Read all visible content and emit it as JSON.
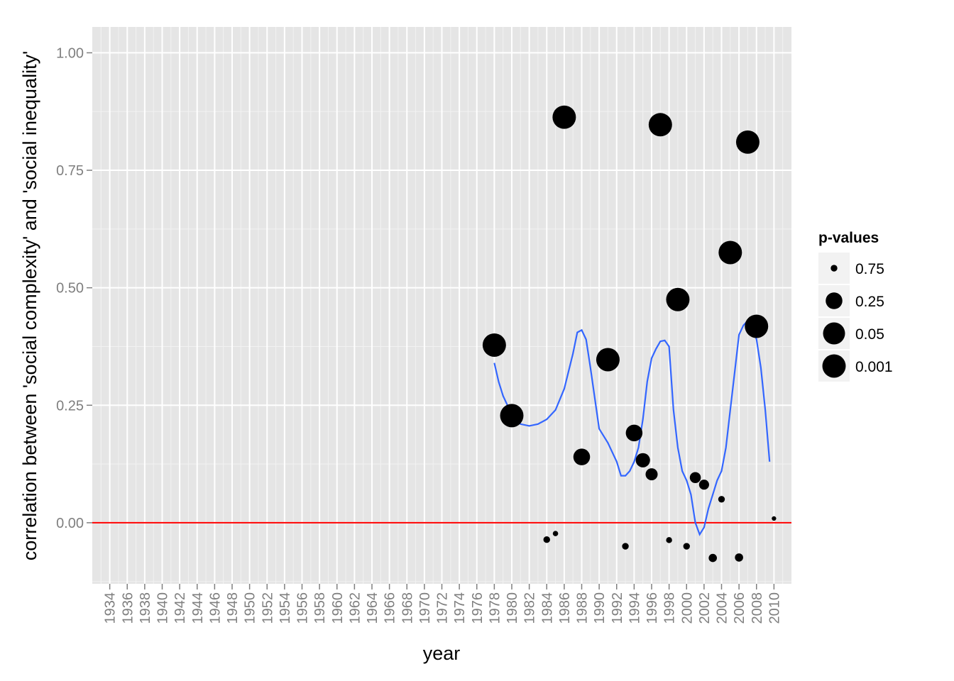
{
  "chart_data": {
    "type": "scatter",
    "xlabel": "year",
    "ylabel": "correlation between 'social complexity' and 'social inequality'",
    "xlim": [
      1932,
      2012
    ],
    "ylim": [
      -0.13,
      1.055
    ],
    "x_ticks": [
      1934,
      1936,
      1938,
      1940,
      1942,
      1944,
      1946,
      1948,
      1950,
      1952,
      1954,
      1956,
      1958,
      1960,
      1962,
      1964,
      1966,
      1968,
      1970,
      1972,
      1974,
      1976,
      1978,
      1980,
      1982,
      1984,
      1986,
      1988,
      1990,
      1992,
      1994,
      1996,
      1998,
      2000,
      2002,
      2004,
      2006,
      2008,
      2010
    ],
    "x_tick_labels": [
      "1934",
      "1936",
      "1938",
      "1940",
      "1942",
      "1944",
      "1946",
      "1948",
      "1950",
      "1952",
      "1954",
      "1956",
      "1958",
      "1960",
      "1962",
      "1964",
      "1966",
      "1968",
      "1970",
      "1972",
      "1974",
      "1976",
      "1978",
      "1980",
      "1982",
      "1984",
      "1986",
      "1988",
      "1990",
      "1992",
      "1994",
      "1996",
      "1998",
      "2000",
      "2002",
      "2004",
      "2006",
      "2008",
      "2010"
    ],
    "y_ticks": [
      0,
      0.25,
      0.5,
      0.75,
      1.0
    ],
    "y_tick_labels": [
      "0.00",
      "0.25",
      "0.50",
      "0.75",
      "1.00"
    ],
    "grid": true,
    "background_color": "#e5e5e5",
    "grid_color": "#ffffff",
    "point_color": "#000000",
    "smooth_color": "#3366ff",
    "reference_line": {
      "y": 0,
      "color": "#ff0000"
    },
    "points": [
      {
        "x": 1978,
        "y": 0.378,
        "p": 0.001
      },
      {
        "x": 1980,
        "y": 0.228,
        "p": 0.001
      },
      {
        "x": 1984,
        "y": -0.036,
        "p": 0.75
      },
      {
        "x": 1985,
        "y": -0.023,
        "p": 0.85
      },
      {
        "x": 1986,
        "y": 0.863,
        "p": 0.001
      },
      {
        "x": 1988,
        "y": 0.14,
        "p": 0.25
      },
      {
        "x": 1991,
        "y": 0.347,
        "p": 0.001
      },
      {
        "x": 1993,
        "y": -0.05,
        "p": 0.75
      },
      {
        "x": 1994,
        "y": 0.191,
        "p": 0.25
      },
      {
        "x": 1995,
        "y": 0.133,
        "p": 0.35
      },
      {
        "x": 1996,
        "y": 0.103,
        "p": 0.45
      },
      {
        "x": 1997,
        "y": 0.847,
        "p": 0.001
      },
      {
        "x": 1998,
        "y": -0.037,
        "p": 0.8
      },
      {
        "x": 1999,
        "y": 0.475,
        "p": 0.001
      },
      {
        "x": 2000,
        "y": -0.05,
        "p": 0.75
      },
      {
        "x": 2001,
        "y": 0.096,
        "p": 0.5
      },
      {
        "x": 2002,
        "y": 0.081,
        "p": 0.55
      },
      {
        "x": 2003,
        "y": -0.075,
        "p": 0.65
      },
      {
        "x": 2004,
        "y": 0.05,
        "p": 0.75
      },
      {
        "x": 2005,
        "y": 0.575,
        "p": 0.001
      },
      {
        "x": 2006,
        "y": -0.074,
        "p": 0.65
      },
      {
        "x": 2007,
        "y": 0.81,
        "p": 0.001
      },
      {
        "x": 2008,
        "y": 0.418,
        "p": 0.001
      },
      {
        "x": 2010,
        "y": 0.009,
        "p": 0.95
      }
    ],
    "smooth_line": [
      [
        1978,
        0.34
      ],
      [
        1978.5,
        0.3
      ],
      [
        1979,
        0.27
      ],
      [
        1980,
        0.23
      ],
      [
        1981,
        0.21
      ],
      [
        1982,
        0.206
      ],
      [
        1983,
        0.21
      ],
      [
        1984,
        0.22
      ],
      [
        1985,
        0.24
      ],
      [
        1986,
        0.285
      ],
      [
        1987,
        0.36
      ],
      [
        1987.5,
        0.405
      ],
      [
        1988,
        0.41
      ],
      [
        1988.5,
        0.39
      ],
      [
        1989,
        0.33
      ],
      [
        1990,
        0.2
      ],
      [
        1991,
        0.17
      ],
      [
        1992,
        0.13
      ],
      [
        1992.5,
        0.1
      ],
      [
        1993,
        0.1
      ],
      [
        1993.5,
        0.11
      ],
      [
        1994,
        0.13
      ],
      [
        1994.5,
        0.16
      ],
      [
        1995,
        0.22
      ],
      [
        1995.5,
        0.3
      ],
      [
        1996,
        0.35
      ],
      [
        1996.5,
        0.37
      ],
      [
        1997,
        0.386
      ],
      [
        1997.5,
        0.388
      ],
      [
        1998,
        0.375
      ],
      [
        1998.5,
        0.24
      ],
      [
        1999,
        0.16
      ],
      [
        1999.5,
        0.11
      ],
      [
        2000,
        0.09
      ],
      [
        2000.5,
        0.06
      ],
      [
        2001,
        0.0
      ],
      [
        2001.5,
        -0.025
      ],
      [
        2002,
        -0.01
      ],
      [
        2002.5,
        0.03
      ],
      [
        2003,
        0.06
      ],
      [
        2003.5,
        0.09
      ],
      [
        2004,
        0.11
      ],
      [
        2004.5,
        0.16
      ],
      [
        2005,
        0.24
      ],
      [
        2005.5,
        0.32
      ],
      [
        2006,
        0.4
      ],
      [
        2006.5,
        0.42
      ],
      [
        2007,
        0.43
      ],
      [
        2007.5,
        0.42
      ],
      [
        2008,
        0.39
      ],
      [
        2008.5,
        0.33
      ],
      [
        2009,
        0.24
      ],
      [
        2009.5,
        0.13
      ]
    ],
    "legend": {
      "title": "p-values",
      "position": "right",
      "entries": [
        {
          "label": "0.75",
          "p": 0.75
        },
        {
          "label": "0.25",
          "p": 0.25
        },
        {
          "label": "0.05",
          "p": 0.05
        },
        {
          "label": "0.001",
          "p": 0.001
        }
      ]
    }
  }
}
